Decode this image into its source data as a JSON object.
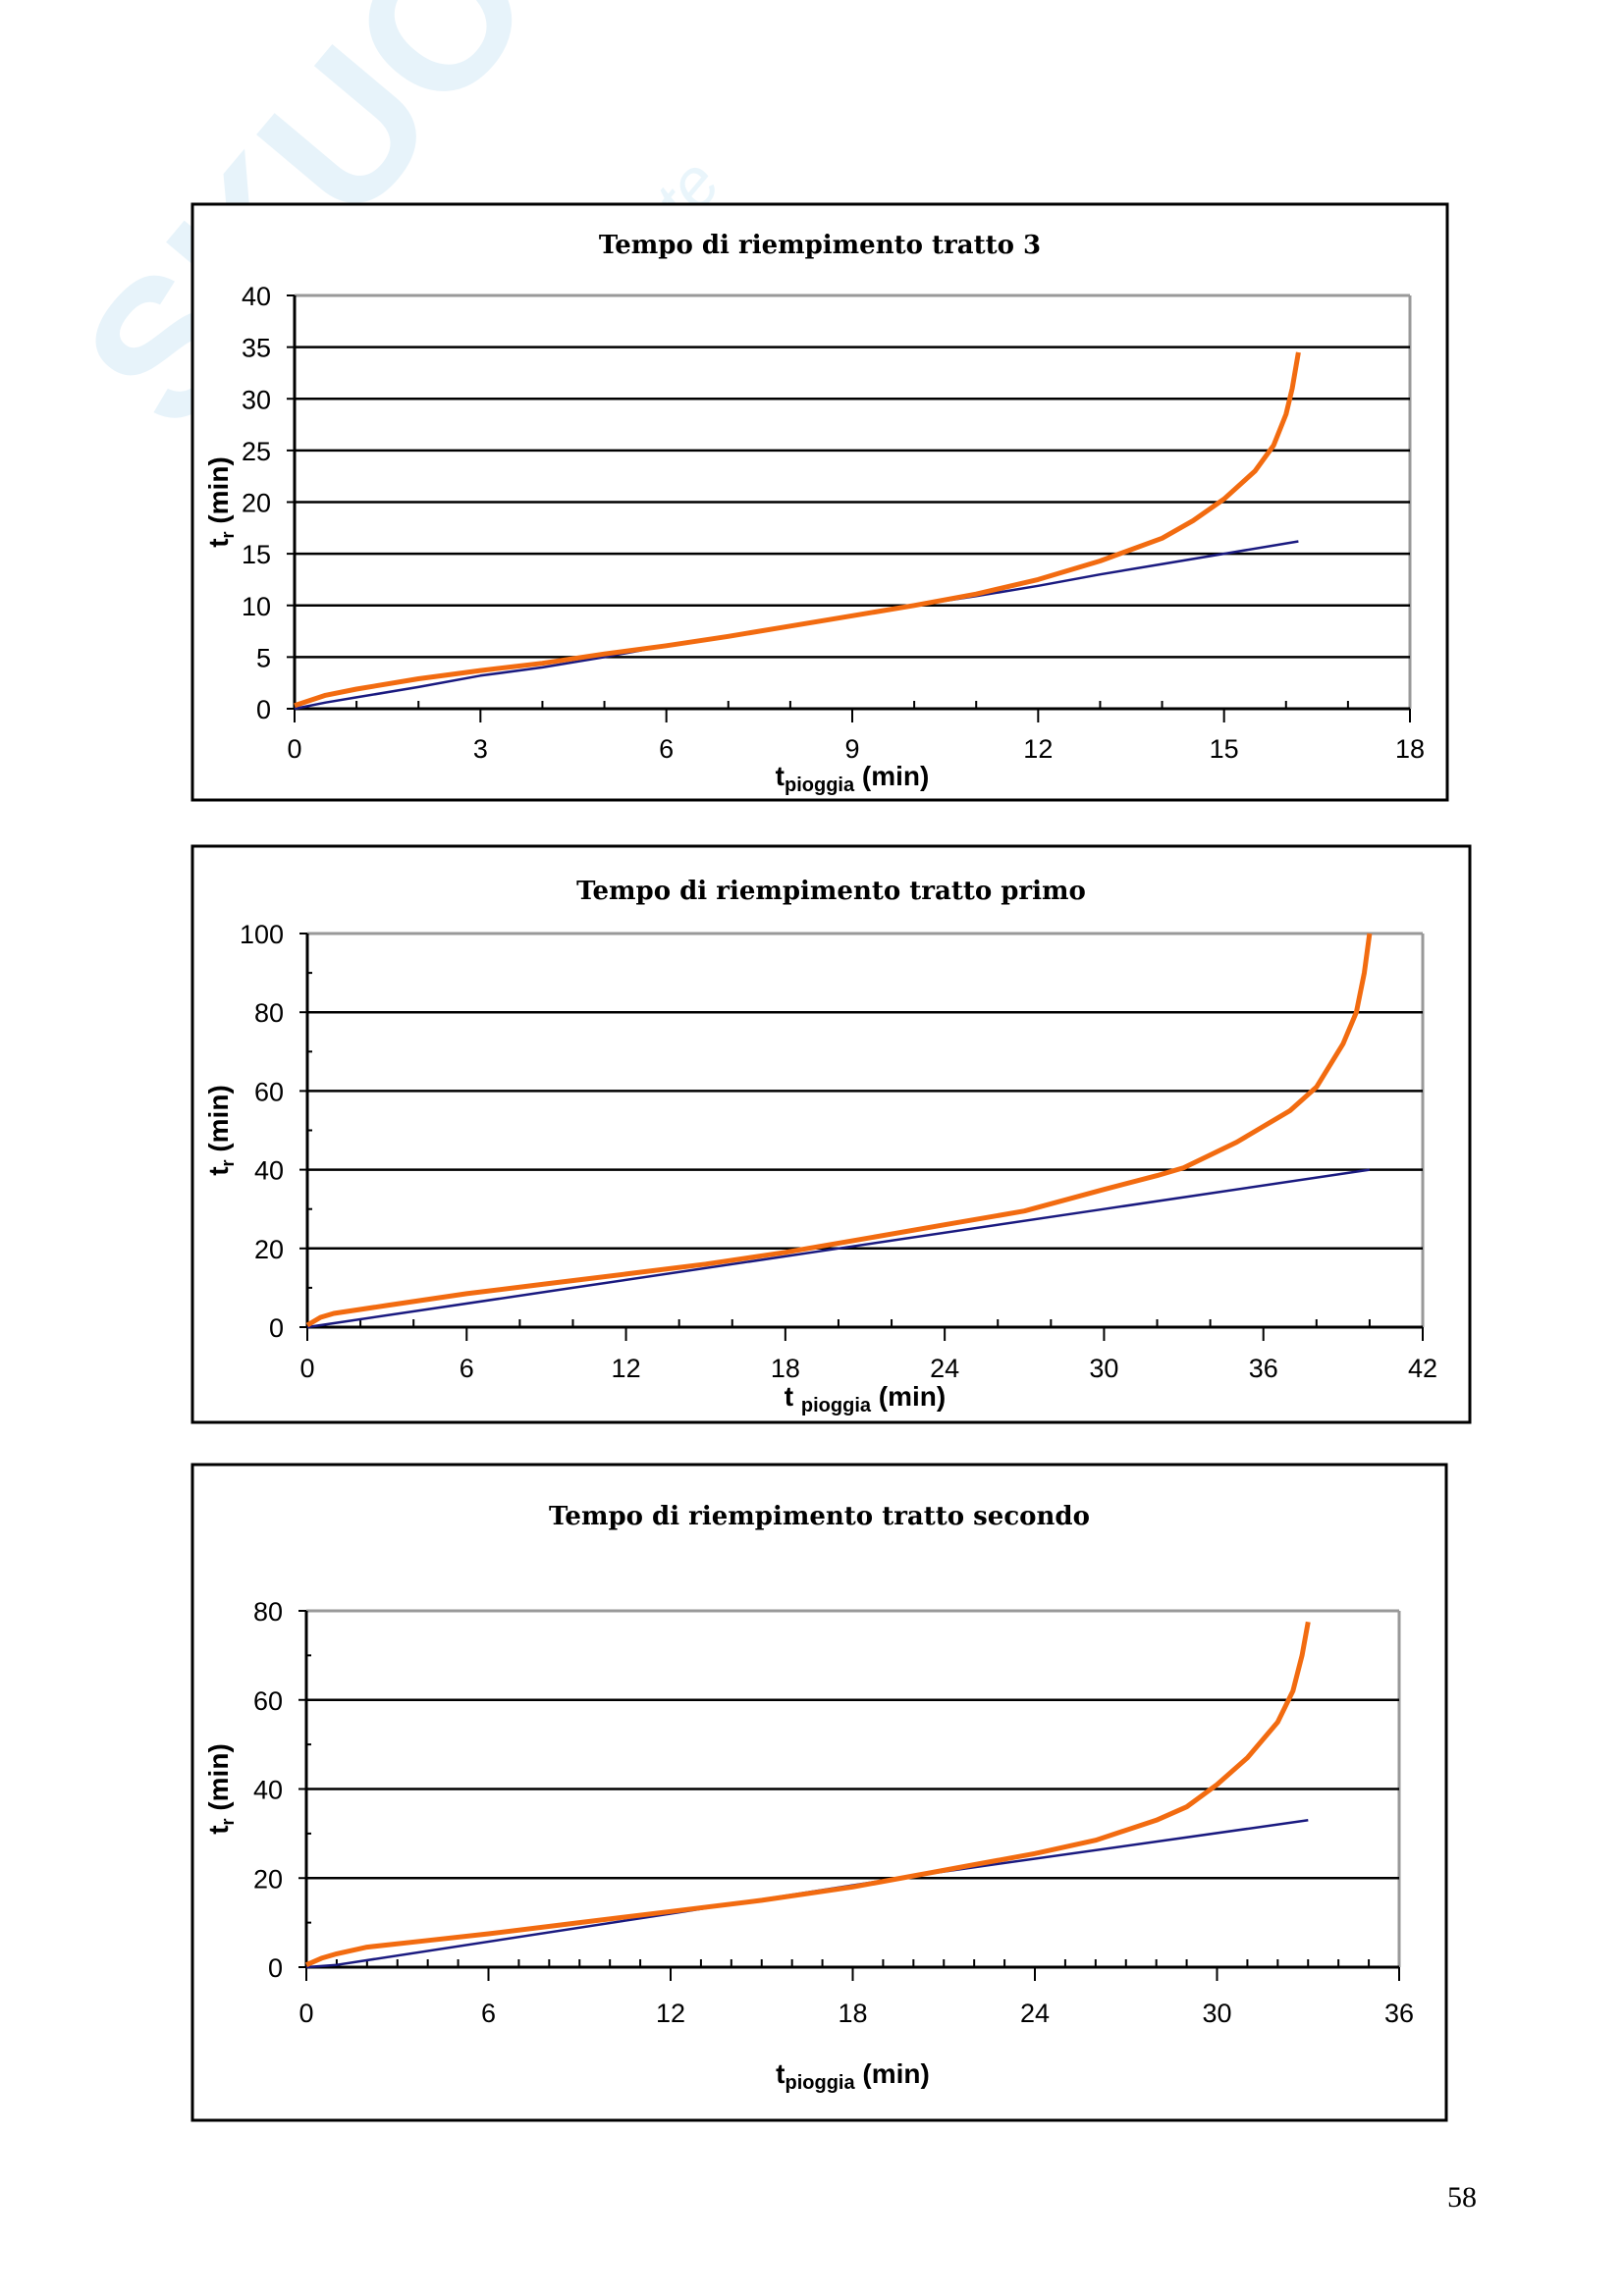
{
  "watermark": {
    "brand": "Skuola.net",
    "tagline": "il paradiso dello studente"
  },
  "page_number": "58",
  "colors": {
    "orange": "#F26B10",
    "blue": "#1A1A80",
    "grid": "#000000",
    "border_light": "#999999"
  },
  "chart_data": [
    {
      "type": "line",
      "title": "Tempo di riempimento tratto 3",
      "xlabel_main": "t",
      "xlabel_sub": "pioggia",
      "xlabel_unit": "(min)",
      "ylabel_main": "t",
      "ylabel_sub": "r",
      "ylabel_unit": "(min)",
      "xlim": [
        0,
        18
      ],
      "ylim": [
        0,
        40
      ],
      "xticks": [
        0,
        3,
        6,
        9,
        12,
        15,
        18
      ],
      "xminor": 1,
      "yticks": [
        0,
        5,
        10,
        15,
        20,
        25,
        30,
        35,
        40
      ],
      "yminor": null,
      "grid": true,
      "series": [
        {
          "name": "orange",
          "color": "#F26B10",
          "x": [
            0,
            0.5,
            1,
            2,
            3,
            4,
            5,
            6,
            7,
            8,
            9,
            10,
            11,
            12,
            13,
            14,
            14.5,
            15,
            15.5,
            15.8,
            16,
            16.1,
            16.2
          ],
          "y": [
            0.3,
            1.3,
            1.9,
            2.9,
            3.7,
            4.4,
            5.3,
            6.1,
            7,
            8,
            9,
            10,
            11.1,
            12.5,
            14.3,
            16.5,
            18.2,
            20.3,
            23,
            25.5,
            28.5,
            31,
            34.5
          ]
        },
        {
          "name": "blue",
          "color": "#1A1A80",
          "x": [
            0,
            0.5,
            1,
            2,
            3,
            4,
            5,
            6,
            7,
            8,
            9,
            10,
            11,
            12,
            13,
            14,
            15,
            16.2
          ],
          "y": [
            0,
            0.6,
            1.1,
            2.1,
            3.2,
            4,
            5,
            6.1,
            7,
            8,
            9,
            10,
            10.9,
            11.9,
            13,
            14,
            15,
            16.2
          ]
        }
      ]
    },
    {
      "type": "line",
      "title": "Tempo di riempimento tratto primo",
      "xlabel_main": "t ",
      "xlabel_sub": "pioggia",
      "xlabel_unit": "(min)",
      "ylabel_main": "t",
      "ylabel_sub": "r",
      "ylabel_unit": "(min)",
      "xlim": [
        0,
        42
      ],
      "ylim": [
        0,
        100
      ],
      "xticks": [
        0,
        6,
        12,
        18,
        24,
        30,
        36,
        42
      ],
      "xminor": 2,
      "yticks": [
        0,
        20,
        40,
        60,
        80,
        100
      ],
      "yminor": 10,
      "grid": true,
      "series": [
        {
          "name": "orange",
          "color": "#F26B10",
          "x": [
            0,
            0.5,
            1,
            3,
            6,
            9,
            12,
            15,
            18,
            21,
            24,
            27,
            30,
            32,
            33,
            35,
            36,
            37,
            38,
            39,
            39.5,
            39.8,
            40
          ],
          "y": [
            0.5,
            2.5,
            3.5,
            5.5,
            8.5,
            11,
            13.5,
            16,
            19,
            22.5,
            26,
            29.5,
            35,
            38.5,
            40.5,
            47,
            51,
            55,
            61,
            72,
            80,
            90,
            100
          ]
        },
        {
          "name": "blue",
          "color": "#1A1A80",
          "x": [
            0,
            1,
            10,
            20,
            30,
            40
          ],
          "y": [
            0,
            1,
            10,
            20,
            30,
            40
          ]
        }
      ]
    },
    {
      "type": "line",
      "title": "Tempo di riempimento tratto secondo",
      "xlabel_main": "t",
      "xlabel_sub": "pioggia",
      "xlabel_unit": "(min)",
      "ylabel_main": "t",
      "ylabel_sub": "r",
      "ylabel_unit": "(min)",
      "xlim": [
        0,
        36
      ],
      "ylim": [
        0,
        80
      ],
      "xticks": [
        0,
        6,
        12,
        18,
        24,
        30,
        36
      ],
      "xminor": 1,
      "yticks": [
        0,
        20,
        40,
        60,
        80
      ],
      "yminor": 10,
      "grid": true,
      "series": [
        {
          "name": "orange",
          "color": "#F26B10",
          "x": [
            0,
            0.5,
            1,
            2,
            4,
            6,
            9,
            12,
            15,
            18,
            20,
            22,
            24,
            26,
            28,
            29,
            30,
            31,
            32,
            32.5,
            32.8,
            33
          ],
          "y": [
            0.5,
            2,
            3,
            4.5,
            6,
            7.5,
            10,
            12.5,
            15,
            18,
            20.5,
            23,
            25.5,
            28.5,
            33,
            36,
            41,
            47,
            55,
            62,
            70,
            77.5
          ]
        },
        {
          "name": "blue",
          "color": "#1A1A80",
          "x": [
            0,
            1,
            12,
            20,
            33
          ],
          "y": [
            0,
            0.5,
            12,
            20.5,
            33
          ]
        }
      ]
    }
  ]
}
